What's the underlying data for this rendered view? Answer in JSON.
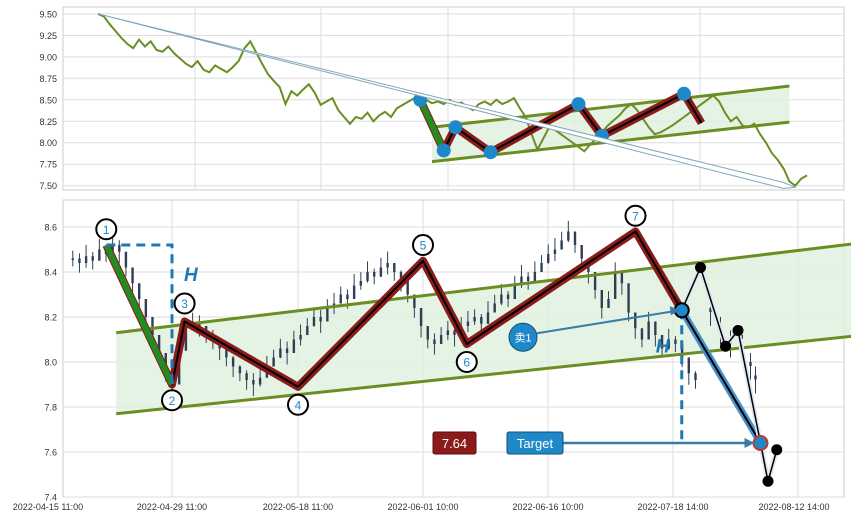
{
  "chart_data": [
    {
      "type": "line",
      "title": "",
      "ylim": [
        7.45,
        9.58
      ],
      "y_ticks": [
        "9.50",
        "9.25",
        "9.00",
        "8.75",
        "8.50",
        "8.25",
        "8.00",
        "7.75",
        "7.50"
      ],
      "grid": true,
      "series": [
        {
          "color": "#6b8e23",
          "values": [
            9.5,
            9.47,
            9.38,
            9.3,
            9.22,
            9.15,
            9.1,
            9.2,
            9.12,
            9.18,
            9.08,
            9.06,
            9.12,
            9.04,
            8.98,
            8.92,
            8.88,
            8.95,
            8.85,
            8.82,
            8.9,
            8.86,
            8.82,
            8.88,
            8.95,
            9.1,
            9.18,
            9.05,
            8.92,
            8.8,
            8.72,
            8.65,
            8.45,
            8.6,
            8.55,
            8.62,
            8.68,
            8.58,
            8.44,
            8.48,
            8.52,
            8.38,
            8.3,
            8.22,
            8.3,
            8.28,
            8.35,
            8.25,
            8.32,
            8.36,
            8.3,
            8.4,
            8.44,
            8.48,
            8.52,
            8.55,
            8.5,
            8.46,
            8.48,
            8.45,
            8.5,
            8.44,
            8.47,
            8.42,
            8.38,
            8.45,
            8.48,
            8.44,
            8.5,
            8.45,
            8.48,
            8.52,
            8.4,
            8.3,
            8.1,
            7.92,
            8.05,
            8.18,
            8.15,
            8.1,
            8.05,
            8.0,
            7.95,
            7.9,
            7.98,
            8.05,
            8.12,
            8.2,
            8.26,
            8.32,
            8.4,
            8.45,
            8.38,
            8.28,
            8.18,
            8.1,
            8.12,
            8.16,
            8.2,
            8.25,
            8.3,
            8.35,
            8.4,
            8.45,
            8.5,
            8.55,
            8.48,
            8.35,
            8.25,
            8.3,
            8.2,
            8.18,
            8.22,
            8.1,
            8.0,
            7.88,
            7.8,
            7.7,
            7.55,
            7.5,
            7.58,
            7.62
          ]
        }
      ],
      "overlays": {
        "channel_upper": [
          [
            57,
            8.18
          ],
          [
            118,
            8.66
          ]
        ],
        "channel_lower": [
          [
            57,
            7.78
          ],
          [
            118,
            8.24
          ]
        ],
        "zigzag": [
          [
            55,
            8.5
          ],
          [
            59,
            7.91
          ],
          [
            61,
            8.18
          ],
          [
            67,
            7.89
          ],
          [
            82,
            8.45
          ],
          [
            86,
            8.08
          ],
          [
            100,
            8.57
          ],
          [
            103,
            8.23
          ]
        ],
        "zigzag_leg1": [
          [
            55,
            8.5
          ],
          [
            59,
            7.91
          ]
        ],
        "pivots": [
          [
            55,
            8.5
          ],
          [
            59,
            7.91
          ],
          [
            61,
            8.18
          ],
          [
            67,
            7.89
          ],
          [
            82,
            8.45
          ],
          [
            86,
            8.08
          ],
          [
            100,
            8.57
          ]
        ],
        "trend_arrow": [
          [
            0,
            9.5
          ],
          [
            119,
            7.48
          ]
        ]
      }
    },
    {
      "type": "line",
      "title": "",
      "ylim": [
        7.4,
        8.72
      ],
      "y_ticks": [
        "8.6",
        "8.4",
        "8.2",
        "8.0",
        "7.8",
        "7.6",
        "7.4"
      ],
      "x_ticks": [
        "2022-04-15 11:00",
        "2022-04-29 11:00",
        "2022-05-18 11:00",
        "2022-06-01 10:00",
        "2022-06-16 10:00",
        "2022-07-18 14:00",
        "2022-08-12 14:00"
      ],
      "grid": true,
      "candles_close": [
        8.46,
        8.44,
        8.47,
        8.45,
        8.5,
        8.48,
        8.52,
        8.49,
        8.42,
        8.35,
        8.28,
        8.2,
        8.12,
        8.04,
        7.96,
        7.9,
        8.05,
        8.14,
        8.18,
        8.16,
        8.12,
        8.1,
        8.06,
        8.02,
        7.98,
        7.95,
        7.92,
        7.9,
        7.93,
        7.98,
        8.02,
        8.06,
        8.04,
        8.1,
        8.12,
        8.16,
        8.2,
        8.18,
        8.24,
        8.26,
        8.3,
        8.28,
        8.34,
        8.36,
        8.4,
        8.38,
        8.42,
        8.44,
        8.4,
        8.36,
        8.3,
        8.24,
        8.16,
        8.1,
        8.08,
        8.12,
        8.14,
        8.12,
        8.16,
        8.18,
        8.2,
        8.17,
        8.22,
        8.26,
        8.3,
        8.28,
        8.34,
        8.38,
        8.36,
        8.4,
        8.44,
        8.48,
        8.5,
        8.54,
        8.58,
        8.52,
        8.46,
        8.4,
        8.32,
        8.24,
        8.28,
        8.4,
        8.35,
        8.22,
        8.15,
        8.1,
        8.18,
        8.12,
        8.06,
        8.1,
        8.08,
        8.02,
        7.95,
        7.92
      ],
      "channel_upper": [
        [
          0.55,
          8.13
        ],
        [
          8.75,
          8.68
        ]
      ],
      "channel_lower": [
        [
          0.55,
          7.77
        ],
        [
          8.75,
          8.25
        ]
      ],
      "zigzag": [
        [
          0.47,
          8.52
        ],
        [
          1.0,
          7.9
        ],
        [
          1.1,
          8.18
        ],
        [
          2.0,
          7.89
        ],
        [
          3.0,
          8.45
        ],
        [
          3.35,
          8.08
        ],
        [
          4.7,
          8.58
        ],
        [
          5.07,
          8.23
        ]
      ],
      "zigzag_leg1": [
        [
          0.47,
          8.52
        ],
        [
          1.0,
          7.9
        ]
      ],
      "points": [
        {
          "label": "1",
          "x": 0.47,
          "y": 8.52,
          "label_y": 8.59
        },
        {
          "label": "2",
          "x": 1.0,
          "y": 7.9,
          "label_y": 7.83
        },
        {
          "label": "3",
          "x": 1.1,
          "y": 8.18,
          "label_y": 8.26
        },
        {
          "label": "4",
          "x": 2.0,
          "y": 7.89,
          "label_y": 7.81
        },
        {
          "label": "5",
          "x": 3.0,
          "y": 8.45,
          "label_y": 8.52
        },
        {
          "label": "6",
          "x": 3.35,
          "y": 8.08,
          "label_y": 8.0
        },
        {
          "label": "7",
          "x": 4.7,
          "y": 8.58,
          "label_y": 8.65
        }
      ],
      "height_marker": {
        "label": "H",
        "x": 1.0,
        "top": 8.52,
        "bottom": 7.9
      },
      "breakout_marker": {
        "label": "H",
        "x": 5.07,
        "top": 8.23,
        "bottom": 7.64
      },
      "projection": [
        [
          5.07,
          8.23
        ],
        [
          5.7,
          7.64
        ]
      ],
      "projection_alt": [
        [
          5.07,
          8.23
        ],
        [
          5.22,
          8.42
        ],
        [
          5.42,
          8.07
        ],
        [
          5.52,
          8.14
        ],
        [
          5.7,
          7.64
        ],
        [
          5.76,
          7.47
        ],
        [
          5.83,
          7.61
        ]
      ],
      "black_points": [
        [
          5.22,
          8.42
        ],
        [
          5.42,
          8.07
        ],
        [
          5.52,
          8.14
        ],
        [
          5.76,
          7.47
        ],
        [
          5.83,
          7.61
        ]
      ],
      "target_point": [
        5.7,
        7.64
      ],
      "sell_signal": {
        "label": "卖1",
        "x": 3.8,
        "y": 8.11,
        "arrow_to": [
          5.07,
          8.23
        ]
      },
      "target_line": {
        "y": 7.64,
        "from_x": 4.04,
        "to_x": 5.7
      },
      "price_badge": "7.64",
      "target_label": "Target"
    }
  ],
  "colors": {
    "price_line": "#6b8e23",
    "channel": "#6b8e23",
    "channel_fill": "#dff0df",
    "zigzag_outer": "#8b1a1a",
    "zigzag_core": "#000000",
    "leg1": "#228b22",
    "pivot_blue": "#1e88c8",
    "dashed_blue": "#1f78b4",
    "target_badge": "#1e88c8",
    "price_badge": "#8b1a1a",
    "candle": "#2f3e55",
    "projection": "#000000",
    "projection_outer": "#4a90c8"
  }
}
